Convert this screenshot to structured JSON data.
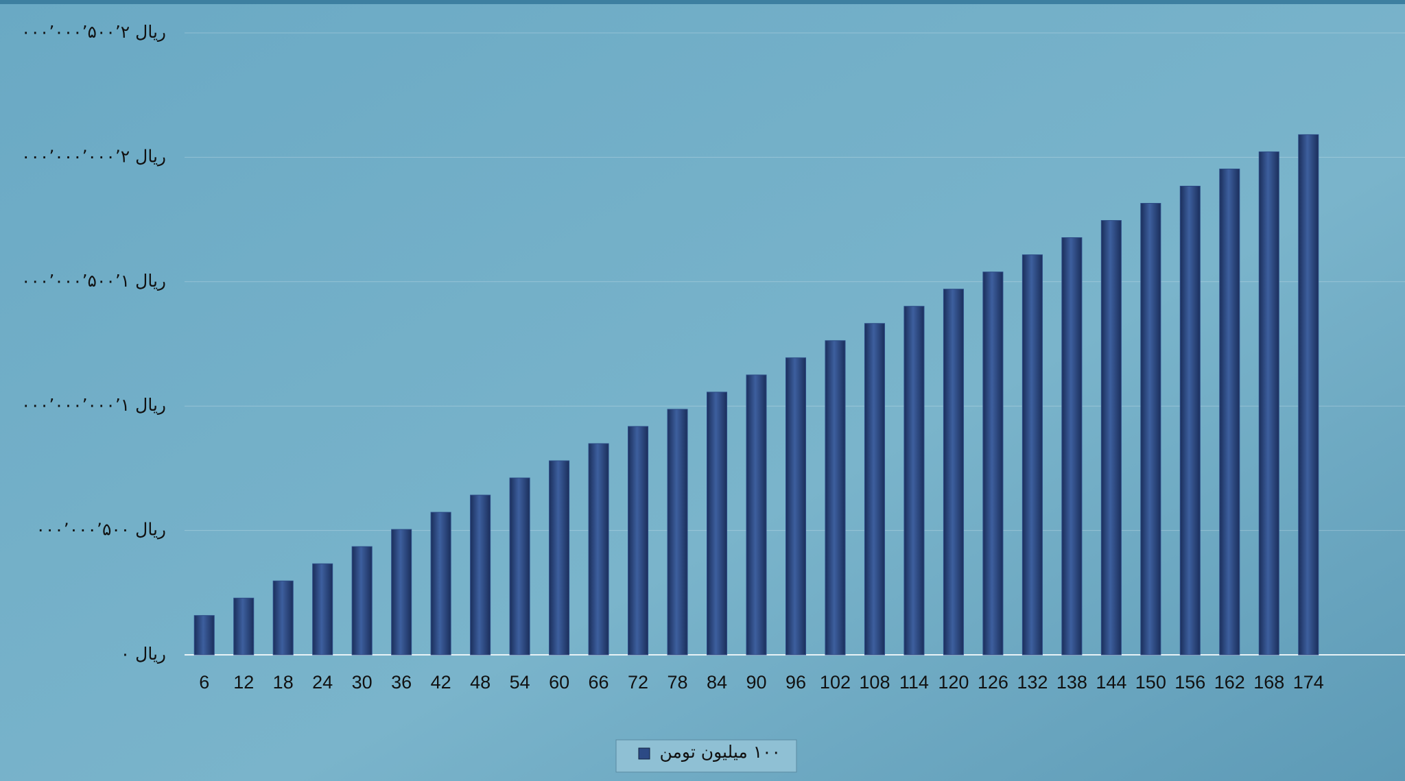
{
  "chart_data": {
    "type": "bar",
    "categories": [
      "6",
      "12",
      "18",
      "24",
      "30",
      "36",
      "42",
      "48",
      "54",
      "60",
      "66",
      "72",
      "78",
      "84",
      "90",
      "96",
      "102",
      "108",
      "114",
      "120",
      "126",
      "132",
      "138",
      "144",
      "150",
      "156",
      "162",
      "168",
      "174"
    ],
    "series": [
      {
        "name": "۱۰۰ میلیون تومن",
        "color": "#2c4a85",
        "values": [
          158000000,
          228000000,
          297000000,
          366000000,
          435000000,
          504000000,
          573000000,
          642000000,
          711000000,
          780000000,
          849000000,
          918000000,
          987000000,
          1056000000,
          1125000000,
          1194000000,
          1263000000,
          1332000000,
          1401000000,
          1470000000,
          1539000000,
          1608000000,
          1677000000,
          1746000000,
          1815000000,
          1884000000,
          1953000000,
          2022000000,
          2091000000
        ]
      }
    ],
    "ylim": [
      0,
      2500000000
    ],
    "yticks": [
      {
        "value": 0,
        "label": "ریال ۰"
      },
      {
        "value": 500000000,
        "label": "ریال ۵۰۰’۰۰۰’۰۰۰"
      },
      {
        "value": 1000000000,
        "label": "ریال ۱’۰۰۰’۰۰۰’۰۰۰"
      },
      {
        "value": 1500000000,
        "label": "ریال ۱’۵۰۰’۰۰۰’۰۰۰"
      },
      {
        "value": 2000000000,
        "label": "ریال ۲’۰۰۰’۰۰۰’۰۰۰"
      },
      {
        "value": 2500000000,
        "label": "ریال ۲’۵۰۰’۰۰۰’۰۰۰"
      }
    ],
    "grid": true,
    "legend": "bottom"
  }
}
